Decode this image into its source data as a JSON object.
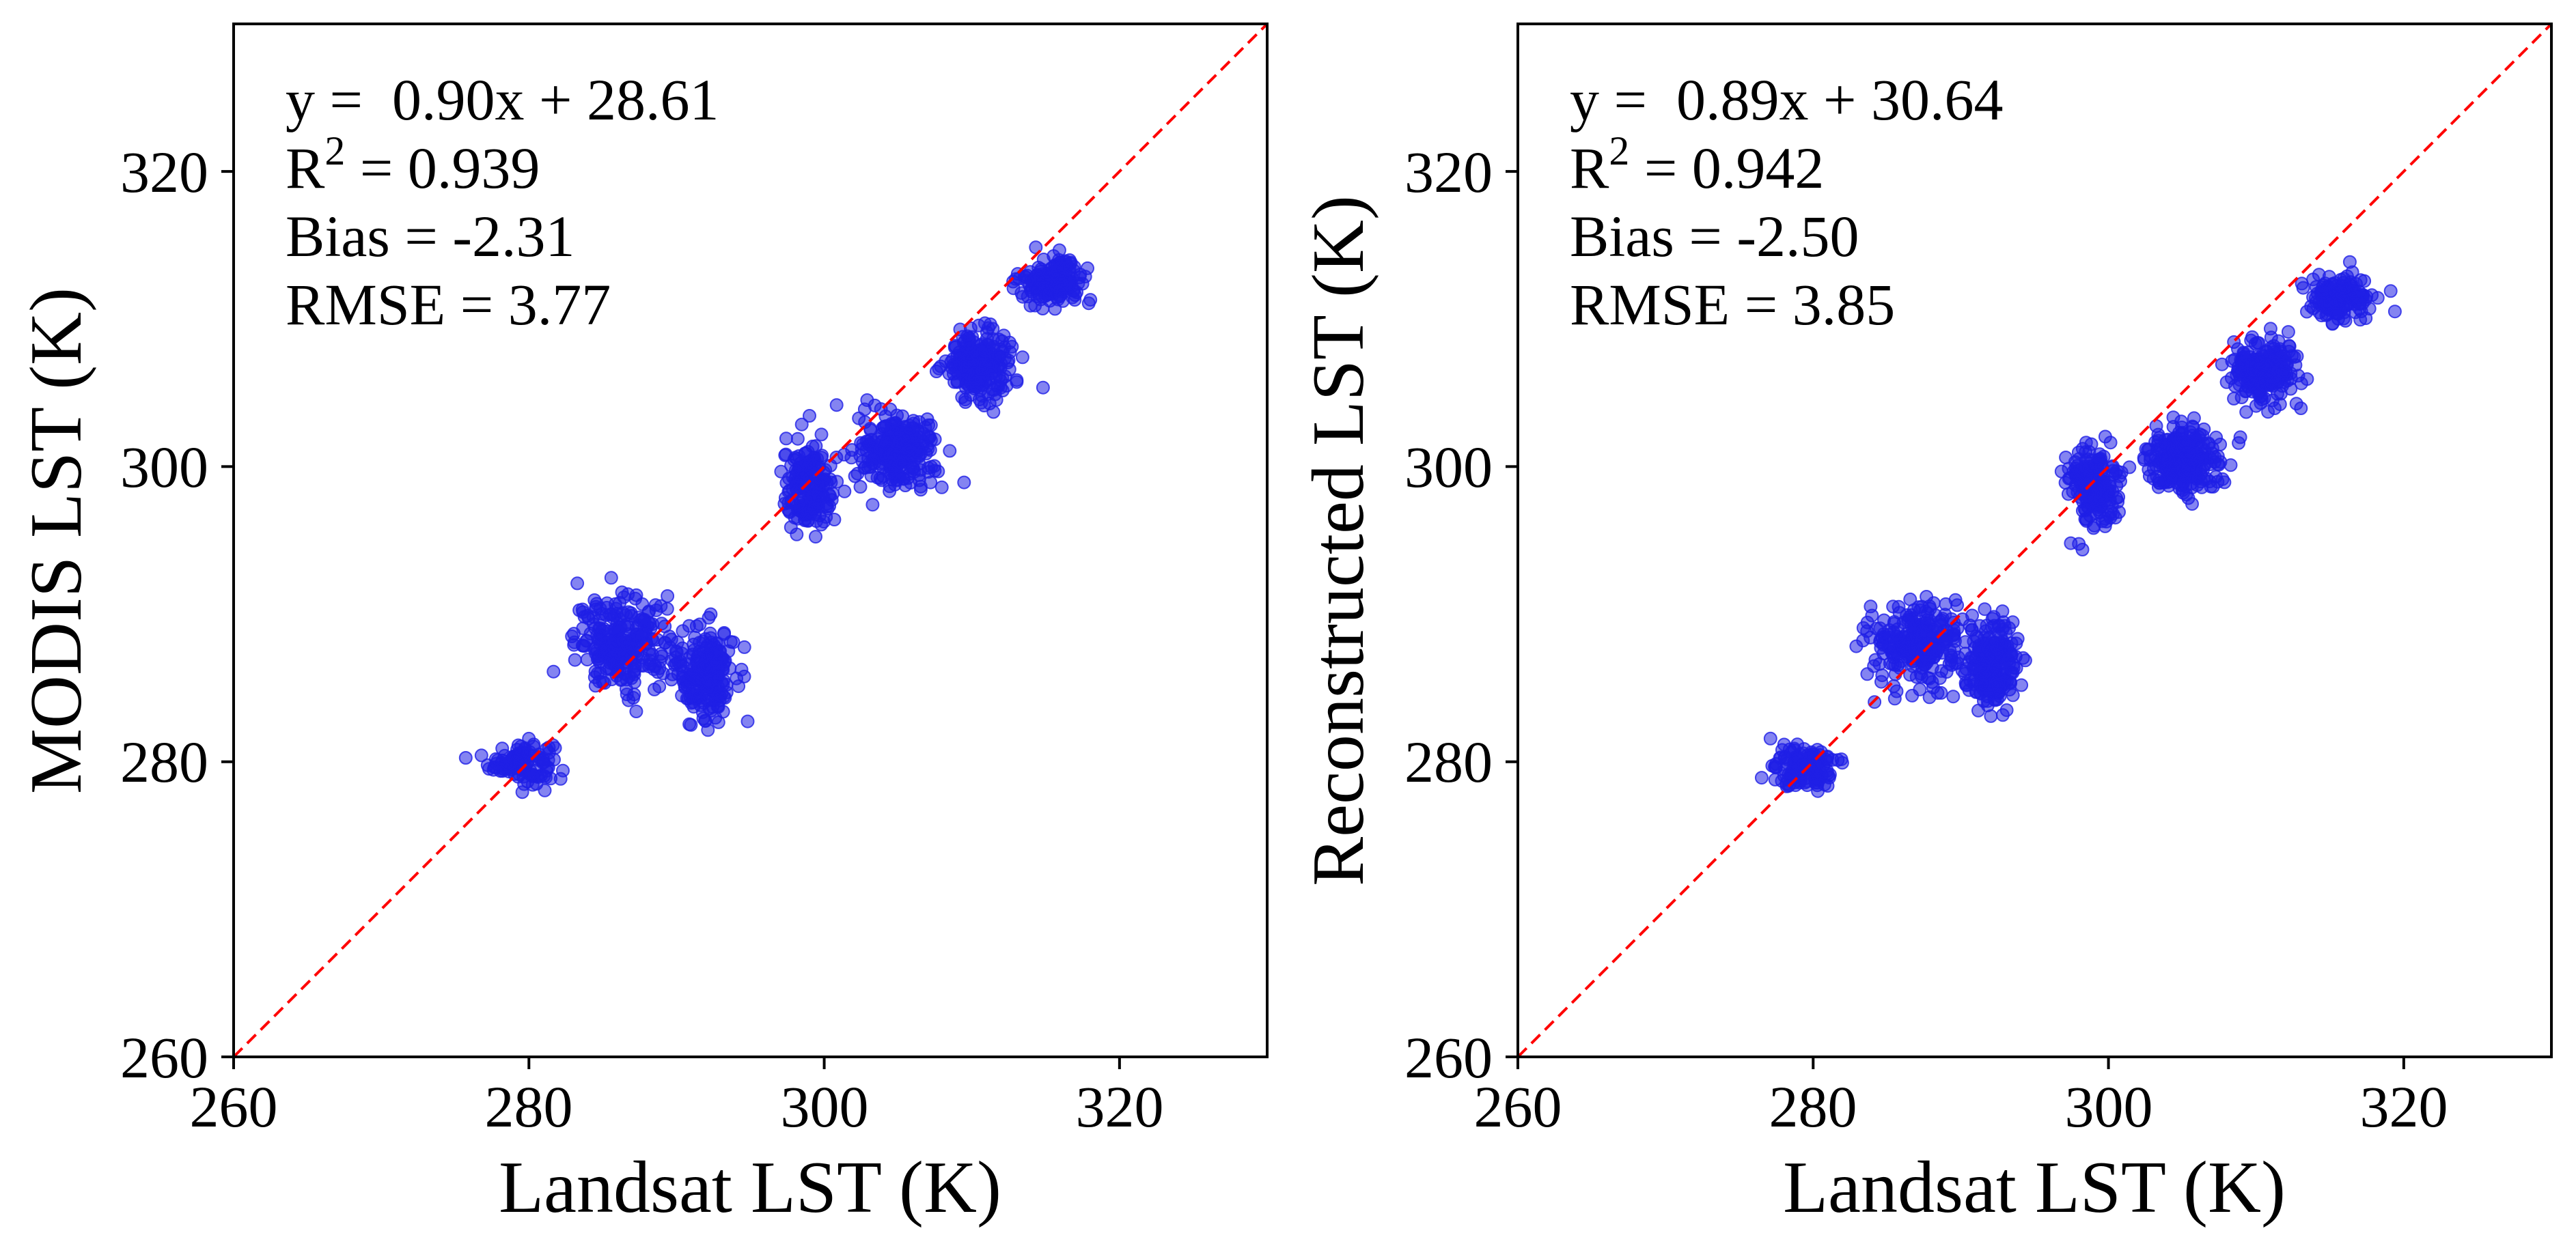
{
  "chart_data": [
    {
      "type": "scatter",
      "xlabel": "Landsat LST (K)",
      "ylabel": "MODIS LST (K)",
      "xlim": [
        260,
        330
      ],
      "ylim": [
        260,
        330
      ],
      "xticks": [
        "260",
        "280",
        "300",
        "320"
      ],
      "yticks": [
        "260",
        "280",
        "300",
        "320"
      ],
      "annotations": {
        "equation": "y =  0.90x + 28.61",
        "r2_prefix": "R",
        "r2_sup": "2",
        "r2_value": " = 0.939",
        "bias": "Bias = -2.31",
        "rmse": "RMSE = 3.77"
      },
      "reference_line": "1:1",
      "point_color": "#1f1fe6",
      "line_color": "#ff0000",
      "point_clusters": [
        {
          "x_center": 279.5,
          "y_center": 280.0,
          "x_spread": 1.8,
          "y_spread": 1.2,
          "count": 120
        },
        {
          "x_center": 286.5,
          "y_center": 288.0,
          "x_spread": 2.8,
          "y_spread": 2.5,
          "count": 260
        },
        {
          "x_center": 292.0,
          "y_center": 286.0,
          "x_spread": 1.6,
          "y_spread": 2.6,
          "count": 220
        },
        {
          "x_center": 299.0,
          "y_center": 298.5,
          "x_spread": 1.5,
          "y_spread": 2.6,
          "count": 180
        },
        {
          "x_center": 305.0,
          "y_center": 301.0,
          "x_spread": 2.2,
          "y_spread": 2.0,
          "count": 260
        },
        {
          "x_center": 310.5,
          "y_center": 307.0,
          "x_spread": 2.0,
          "y_spread": 2.0,
          "count": 220
        },
        {
          "x_center": 315.5,
          "y_center": 312.5,
          "x_spread": 1.8,
          "y_spread": 1.2,
          "count": 160
        }
      ]
    },
    {
      "type": "scatter",
      "xlabel": "Landsat LST (K)",
      "ylabel": "Reconstructed LST (K)",
      "xlim": [
        260,
        330
      ],
      "ylim": [
        260,
        330
      ],
      "xticks": [
        "260",
        "280",
        "300",
        "320"
      ],
      "yticks": [
        "260",
        "280",
        "300",
        "320"
      ],
      "annotations": {
        "equation": "y =  0.89x + 30.64",
        "r2_prefix": "R",
        "r2_sup": "2",
        "r2_value": " = 0.942",
        "bias": "Bias = -2.50",
        "rmse": "RMSE = 3.85"
      },
      "reference_line": "1:1",
      "point_color": "#1f1fe6",
      "line_color": "#ff0000",
      "point_clusters": [
        {
          "x_center": 279.5,
          "y_center": 279.5,
          "x_spread": 1.8,
          "y_spread": 1.2,
          "count": 120
        },
        {
          "x_center": 287.0,
          "y_center": 288.0,
          "x_spread": 2.6,
          "y_spread": 2.3,
          "count": 260
        },
        {
          "x_center": 292.0,
          "y_center": 286.5,
          "x_spread": 1.5,
          "y_spread": 2.6,
          "count": 220
        },
        {
          "x_center": 299.0,
          "y_center": 298.5,
          "x_spread": 1.5,
          "y_spread": 2.4,
          "count": 180
        },
        {
          "x_center": 305.0,
          "y_center": 300.5,
          "x_spread": 2.3,
          "y_spread": 1.8,
          "count": 260
        },
        {
          "x_center": 310.5,
          "y_center": 306.5,
          "x_spread": 2.0,
          "y_spread": 1.8,
          "count": 220
        },
        {
          "x_center": 315.5,
          "y_center": 311.5,
          "x_spread": 1.8,
          "y_spread": 1.2,
          "count": 160
        }
      ]
    }
  ]
}
